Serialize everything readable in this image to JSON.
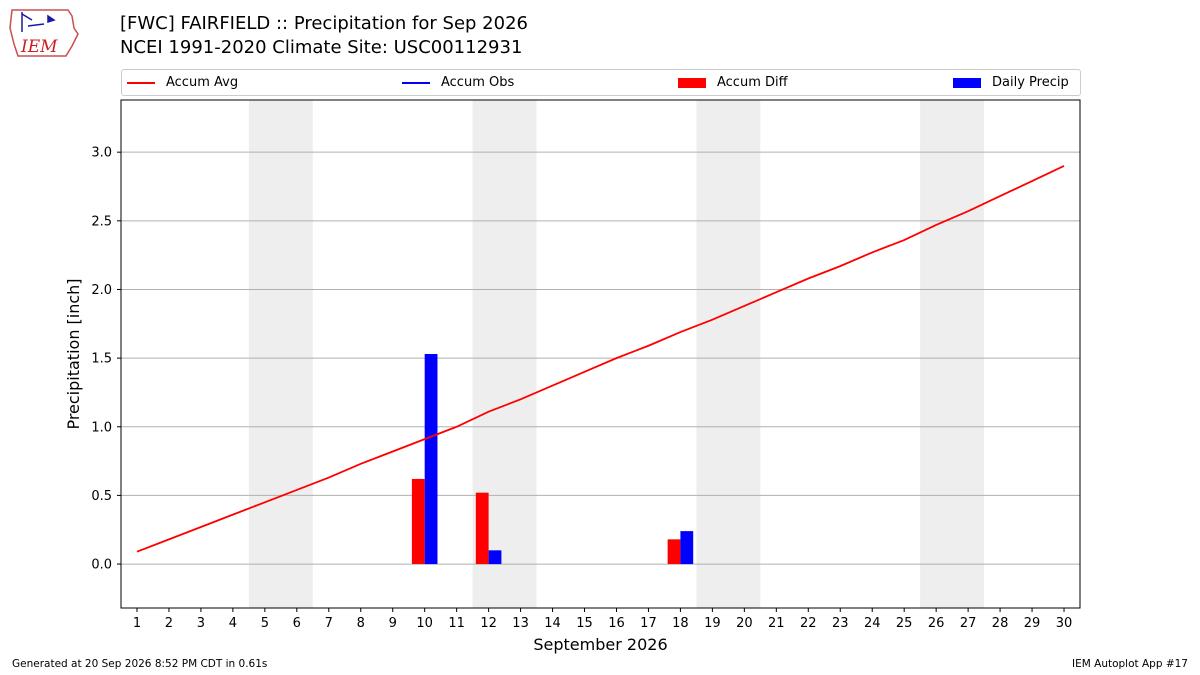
{
  "header": {
    "title_line1": "[FWC] FAIRFIELD :: Precipitation for Sep 2026",
    "title_line2": "NCEI 1991-2020 Climate Site: USC00112931",
    "logo_text": "IEM"
  },
  "legend": [
    {
      "label": "Accum Avg",
      "color": "#ff0000",
      "kind": "line"
    },
    {
      "label": "Accum Obs",
      "color": "#0000ff",
      "kind": "line"
    },
    {
      "label": "Accum Diff",
      "color": "#ff0000",
      "kind": "box"
    },
    {
      "label": "Daily Precip",
      "color": "#0000ff",
      "kind": "box"
    }
  ],
  "footer": {
    "left": "Generated at 20 Sep 2026 8:52 PM CDT in 0.61s",
    "right": "IEM Autoplot App #17"
  },
  "chart_data": {
    "type": "bar",
    "xlabel": "September 2026",
    "ylabel": "Precipitation [inch]",
    "xlim": [
      0.5,
      30.5
    ],
    "ylim": [
      -0.32,
      3.38
    ],
    "x_ticks": [
      1,
      2,
      3,
      4,
      5,
      6,
      7,
      8,
      9,
      10,
      11,
      12,
      13,
      14,
      15,
      16,
      17,
      18,
      19,
      20,
      21,
      22,
      23,
      24,
      25,
      26,
      27,
      28,
      29,
      30
    ],
    "y_ticks": [
      0.0,
      0.5,
      1.0,
      1.5,
      2.0,
      2.5,
      3.0
    ],
    "y_tick_labels": [
      "0.0",
      "0.5",
      "1.0",
      "1.5",
      "2.0",
      "2.5",
      "3.0"
    ],
    "grid": "horizontal",
    "weekend_shading": [
      [
        4.5,
        6.5
      ],
      [
        11.5,
        13.5
      ],
      [
        18.5,
        20.5
      ],
      [
        25.5,
        27.5
      ]
    ],
    "shade_color": "#eeeeee",
    "accum_avg": {
      "name": "Accum Avg",
      "color": "#ff0000",
      "x": [
        1,
        2,
        3,
        4,
        5,
        6,
        7,
        8,
        9,
        10,
        11,
        12,
        13,
        14,
        15,
        16,
        17,
        18,
        19,
        20,
        21,
        22,
        23,
        24,
        25,
        26,
        27,
        28,
        29,
        30
      ],
      "y": [
        0.09,
        0.18,
        0.27,
        0.36,
        0.45,
        0.54,
        0.63,
        0.73,
        0.82,
        0.91,
        1.0,
        1.11,
        1.2,
        1.3,
        1.4,
        1.5,
        1.59,
        1.69,
        1.78,
        1.88,
        1.98,
        2.08,
        2.17,
        2.27,
        2.36,
        2.47,
        2.57,
        2.68,
        2.79,
        2.9
      ]
    },
    "accum_diff": {
      "name": "Accum Diff",
      "color": "#ff0000",
      "x": [
        10,
        12,
        18
      ],
      "y": [
        0.62,
        0.52,
        0.18
      ]
    },
    "daily_precip": {
      "name": "Daily Precip",
      "color": "#0000ff",
      "x": [
        10,
        12,
        18
      ],
      "y": [
        1.53,
        0.1,
        0.24
      ]
    }
  }
}
